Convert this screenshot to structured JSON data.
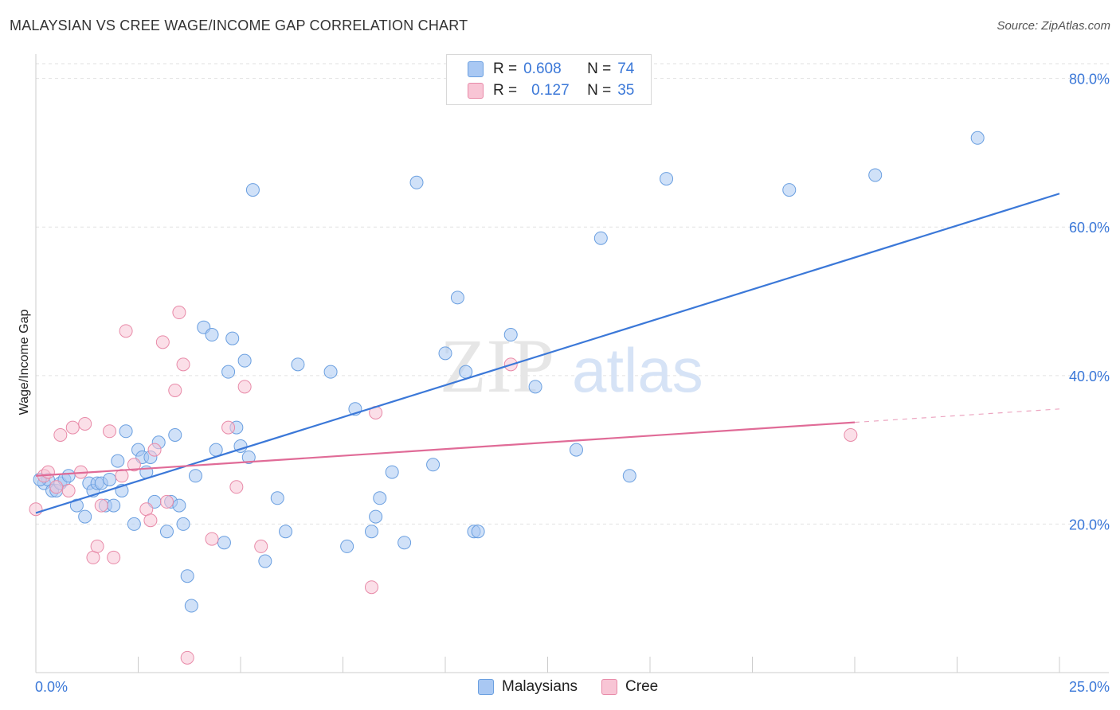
{
  "title": "MALAYSIAN VS CREE WAGE/INCOME GAP CORRELATION CHART",
  "source": "Source: ZipAtlas.com",
  "watermark": {
    "zip": "ZIP",
    "atlas": "atlas"
  },
  "legend": {
    "rows": [
      {
        "r_label": "R =",
        "r_value": "0.608",
        "n_label": "N =",
        "n_value": "74",
        "color": "#a9c8f3",
        "border": "#6a9fe0"
      },
      {
        "r_label": "R =",
        "r_value": "0.127",
        "n_label": "N =",
        "n_value": "35",
        "color": "#f8c5d5",
        "border": "#e88aa8"
      }
    ]
  },
  "bottom_legend": [
    {
      "label": "Malaysians",
      "color": "#a9c8f3",
      "border": "#6a9fe0"
    },
    {
      "label": "Cree",
      "color": "#f8c5d5",
      "border": "#e88aa8"
    }
  ],
  "chart_data": {
    "type": "scatter",
    "title": "MALAYSIAN VS CREE WAGE/INCOME GAP CORRELATION CHART",
    "xlabel": "",
    "ylabel": "Wage/Income Gap",
    "xlim": [
      0,
      25
    ],
    "ylim": [
      0,
      82
    ],
    "x_tick_labels": [
      "0.0%",
      "25.0%"
    ],
    "y_ticks": [
      20,
      40,
      60,
      80
    ],
    "y_tick_labels": [
      "20.0%",
      "40.0%",
      "60.0%",
      "80.0%"
    ],
    "grid": true,
    "series": [
      {
        "name": "Malaysians",
        "color": "#3b78d8",
        "fill": "#a9c8f3",
        "r": 0.608,
        "n": 74,
        "trend": {
          "x": [
            0.0,
            25.0
          ],
          "y": [
            21.5,
            64.5
          ]
        },
        "points": [
          [
            0.2,
            25.5
          ],
          [
            0.3,
            26.0
          ],
          [
            0.4,
            24.5
          ],
          [
            0.5,
            24.5
          ],
          [
            0.6,
            25.5
          ],
          [
            0.7,
            26.0
          ],
          [
            0.8,
            26.5
          ],
          [
            1.0,
            22.5
          ],
          [
            1.2,
            21.0
          ],
          [
            1.3,
            25.5
          ],
          [
            1.4,
            24.5
          ],
          [
            1.5,
            25.5
          ],
          [
            1.6,
            25.5
          ],
          [
            1.7,
            22.5
          ],
          [
            1.8,
            26.0
          ],
          [
            1.9,
            22.5
          ],
          [
            2.0,
            28.5
          ],
          [
            2.1,
            24.5
          ],
          [
            2.2,
            32.5
          ],
          [
            2.4,
            20.0
          ],
          [
            2.5,
            30.0
          ],
          [
            2.6,
            29.0
          ],
          [
            2.7,
            27.0
          ],
          [
            2.8,
            29.0
          ],
          [
            2.9,
            23.0
          ],
          [
            3.0,
            31.0
          ],
          [
            3.2,
            19.0
          ],
          [
            3.3,
            23.0
          ],
          [
            3.4,
            32.0
          ],
          [
            3.5,
            22.5
          ],
          [
            3.6,
            20.0
          ],
          [
            3.7,
            13.0
          ],
          [
            3.8,
            9.0
          ],
          [
            3.9,
            26.5
          ],
          [
            4.1,
            46.5
          ],
          [
            4.3,
            45.5
          ],
          [
            4.4,
            30.0
          ],
          [
            4.6,
            17.5
          ],
          [
            4.7,
            40.5
          ],
          [
            4.8,
            45.0
          ],
          [
            4.9,
            33.0
          ],
          [
            5.0,
            30.5
          ],
          [
            5.1,
            42.0
          ],
          [
            5.2,
            29.0
          ],
          [
            5.3,
            65.0
          ],
          [
            5.6,
            15.0
          ],
          [
            5.9,
            23.5
          ],
          [
            6.1,
            19.0
          ],
          [
            6.4,
            41.5
          ],
          [
            7.2,
            40.5
          ],
          [
            7.6,
            17.0
          ],
          [
            7.8,
            35.5
          ],
          [
            8.2,
            19.0
          ],
          [
            8.3,
            21.0
          ],
          [
            8.4,
            23.5
          ],
          [
            8.7,
            27.0
          ],
          [
            9.0,
            17.5
          ],
          [
            9.3,
            66.0
          ],
          [
            9.7,
            28.0
          ],
          [
            10.0,
            43.0
          ],
          [
            10.3,
            50.5
          ],
          [
            10.5,
            40.5
          ],
          [
            10.7,
            19.0
          ],
          [
            10.8,
            19.0
          ],
          [
            11.6,
            45.5
          ],
          [
            12.2,
            38.5
          ],
          [
            13.2,
            30.0
          ],
          [
            13.8,
            58.5
          ],
          [
            14.5,
            26.5
          ],
          [
            15.4,
            66.5
          ],
          [
            18.4,
            65.0
          ],
          [
            20.5,
            67.0
          ],
          [
            23.0,
            72.0
          ],
          [
            0.1,
            26.0
          ]
        ]
      },
      {
        "name": "Cree",
        "color": "#e06b97",
        "fill": "#f8c5d5",
        "r": 0.127,
        "n": 35,
        "trend": {
          "x": [
            0.0,
            20.0
          ],
          "y": [
            26.5,
            33.7
          ]
        },
        "trend_dashed": {
          "x": [
            20.0,
            25.0
          ],
          "y": [
            33.7,
            35.5
          ]
        },
        "points": [
          [
            0.0,
            22.0
          ],
          [
            0.2,
            26.5
          ],
          [
            0.3,
            27.0
          ],
          [
            0.5,
            25.0
          ],
          [
            0.6,
            32.0
          ],
          [
            0.9,
            33.0
          ],
          [
            1.1,
            27.0
          ],
          [
            1.2,
            33.5
          ],
          [
            1.4,
            15.5
          ],
          [
            1.5,
            17.0
          ],
          [
            1.6,
            22.5
          ],
          [
            1.8,
            32.5
          ],
          [
            1.9,
            15.5
          ],
          [
            2.1,
            26.5
          ],
          [
            2.2,
            46.0
          ],
          [
            2.4,
            28.0
          ],
          [
            2.7,
            22.0
          ],
          [
            2.8,
            20.5
          ],
          [
            2.9,
            30.0
          ],
          [
            3.1,
            44.5
          ],
          [
            3.2,
            23.0
          ],
          [
            3.4,
            38.0
          ],
          [
            3.5,
            48.5
          ],
          [
            3.6,
            41.5
          ],
          [
            3.7,
            2.0
          ],
          [
            4.3,
            18.0
          ],
          [
            4.7,
            33.0
          ],
          [
            4.9,
            25.0
          ],
          [
            5.1,
            38.5
          ],
          [
            5.5,
            17.0
          ],
          [
            8.2,
            11.5
          ],
          [
            8.3,
            35.0
          ],
          [
            11.6,
            41.5
          ],
          [
            19.9,
            32.0
          ],
          [
            0.8,
            24.5
          ]
        ]
      }
    ]
  }
}
